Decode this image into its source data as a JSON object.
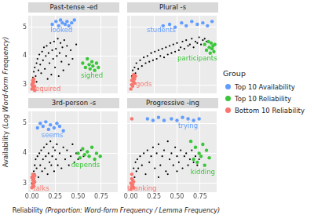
{
  "chart_data": {
    "type": "scatter",
    "x_label": "Reliability (Proportion: Word-form Frequency / Lemma Frequency)",
    "y_label": "Availability (Log Word-form Frequency)",
    "legend": "right",
    "legend_title": "Group",
    "grid": true,
    "xlim": [
      -0.04,
      0.93
    ],
    "ylim": [
      2.7,
      5.4
    ],
    "xticks": [
      {
        "value": 0,
        "label": "0.00"
      },
      {
        "value": 0.25,
        "label": "0.25"
      },
      {
        "value": 0.5,
        "label": "0.50"
      },
      {
        "value": 0.75,
        "label": "0.75"
      }
    ],
    "yticks": [
      3,
      4,
      5
    ],
    "panels": [
      {
        "title": "Past-tense -ed",
        "series": [
          {
            "color": "#000000",
            "x": [
              0.0,
              0.01,
              0.01,
              0.02,
              0.02,
              0.03,
              0.04,
              0.05,
              0.05,
              0.06,
              0.07,
              0.08,
              0.09,
              0.1,
              0.11,
              0.12,
              0.13,
              0.14,
              0.15,
              0.16,
              0.17,
              0.18,
              0.19,
              0.2,
              0.21,
              0.22,
              0.23,
              0.24,
              0.25,
              0.26,
              0.27,
              0.28,
              0.29,
              0.3,
              0.31,
              0.32,
              0.33,
              0.34,
              0.35,
              0.37,
              0.38,
              0.4,
              0.42,
              0.44,
              0.48
            ],
            "y": [
              3.05,
              2.95,
              3.25,
              3.15,
              3.45,
              3.6,
              3.3,
              3.75,
              3.1,
              3.9,
              3.5,
              4.05,
              3.7,
              3.4,
              4.15,
              3.85,
              4.3,
              3.55,
              4.0,
              4.35,
              3.2,
              4.1,
              3.75,
              4.45,
              3.35,
              4.2,
              3.9,
              4.5,
              3.6,
              4.25,
              4.0,
              4.6,
              3.3,
              4.1,
              4.45,
              3.8,
              4.3,
              3.5,
              4.55,
              4.0,
              4.35,
              3.7,
              4.2,
              3.9,
              4.4
            ]
          },
          {
            "name": "Top 10 Availability",
            "color": "#619cff",
            "x": [
              0.22,
              0.26,
              0.29,
              0.31,
              0.33,
              0.36,
              0.38,
              0.4,
              0.43,
              0.46
            ],
            "y": [
              5.1,
              5.2,
              5.05,
              5.25,
              5.15,
              5.1,
              5.2,
              5.05,
              5.15,
              5.25
            ]
          },
          {
            "name": "Top 10 Reliability",
            "color": "#39c639",
            "x": [
              0.55,
              0.58,
              0.6,
              0.62,
              0.63,
              0.65,
              0.66,
              0.68,
              0.7,
              0.72
            ],
            "y": [
              3.75,
              3.6,
              3.9,
              3.7,
              3.55,
              3.8,
              3.65,
              3.5,
              3.75,
              3.6
            ]
          },
          {
            "name": "Bottom 10 Reliability",
            "color": "#f8766d",
            "x": [
              0.0,
              0.01,
              0.01,
              0.02,
              0.02,
              0.03,
              0.0,
              0.01,
              0.02,
              0.03
            ],
            "y": [
              2.85,
              2.95,
              3.05,
              2.9,
              3.1,
              2.95,
              3.0,
              3.15,
              3.2,
              2.8
            ]
          }
        ],
        "annotations": [
          {
            "text": "looked",
            "x": 0.32,
            "y": 4.9,
            "color": "#619cff"
          },
          {
            "text": "sighed",
            "x": 0.65,
            "y": 3.3,
            "color": "#39c639"
          },
          {
            "text": "required",
            "x": 0.16,
            "y": 2.85,
            "color": "#f8766d"
          }
        ]
      },
      {
        "title": "Plural -s",
        "series": [
          {
            "color": "#000000",
            "x": [
              0.0,
              0.01,
              0.02,
              0.03,
              0.04,
              0.05,
              0.06,
              0.08,
              0.1,
              0.12,
              0.14,
              0.16,
              0.18,
              0.2,
              0.22,
              0.24,
              0.26,
              0.28,
              0.3,
              0.32,
              0.34,
              0.36,
              0.38,
              0.4,
              0.42,
              0.44,
              0.46,
              0.48,
              0.5,
              0.52,
              0.54,
              0.56,
              0.58,
              0.6,
              0.62,
              0.64,
              0.66,
              0.68,
              0.7,
              0.72,
              0.74,
              0.76,
              0.78,
              0.8,
              0.82
            ],
            "y": [
              3.0,
              3.3,
              3.5,
              3.2,
              3.6,
              3.4,
              3.75,
              3.55,
              3.85,
              3.65,
              3.95,
              3.75,
              4.0,
              3.8,
              4.1,
              3.85,
              4.15,
              3.9,
              4.2,
              4.0,
              4.25,
              3.95,
              4.3,
              4.05,
              4.35,
              4.1,
              4.4,
              4.15,
              4.45,
              4.2,
              4.3,
              4.5,
              4.25,
              4.55,
              4.35,
              4.4,
              4.6,
              4.3,
              4.5,
              4.45,
              4.65,
              4.4,
              4.55,
              4.6,
              4.5
            ]
          },
          {
            "name": "Top 10 Availability",
            "color": "#619cff",
            "x": [
              0.35,
              0.42,
              0.48,
              0.55,
              0.6,
              0.66,
              0.72,
              0.78,
              0.83,
              0.88
            ],
            "y": [
              5.05,
              5.1,
              5.0,
              5.15,
              5.05,
              5.2,
              5.1,
              5.15,
              5.05,
              5.2
            ]
          },
          {
            "name": "Top 10 Reliability",
            "color": "#39c639",
            "x": [
              0.8,
              0.82,
              0.84,
              0.85,
              0.86,
              0.87,
              0.88,
              0.89,
              0.9,
              0.91
            ],
            "y": [
              4.4,
              4.2,
              4.5,
              4.3,
              4.1,
              4.45,
              4.25,
              4.35,
              4.15,
              4.4
            ]
          },
          {
            "name": "Bottom 10 Reliability",
            "color": "#f8766d",
            "x": [
              0.0,
              0.01,
              0.01,
              0.02,
              0.02,
              0.03,
              0.03,
              0.04,
              0.04,
              0.05
            ],
            "y": [
              2.85,
              3.0,
              3.15,
              2.95,
              3.25,
              3.1,
              3.35,
              3.05,
              3.2,
              3.3
            ]
          }
        ],
        "annotations": [
          {
            "text": "students",
            "x": 0.33,
            "y": 4.88,
            "color": "#619cff"
          },
          {
            "text": "participants",
            "x": 0.72,
            "y": 3.9,
            "color": "#39c639"
          },
          {
            "text": "gods",
            "x": 0.14,
            "y": 3.0,
            "color": "#f8766d"
          }
        ]
      },
      {
        "title": "3rd-person -s",
        "series": [
          {
            "color": "#000000",
            "x": [
              0.0,
              0.01,
              0.01,
              0.02,
              0.02,
              0.03,
              0.03,
              0.04,
              0.05,
              0.06,
              0.07,
              0.08,
              0.09,
              0.1,
              0.11,
              0.12,
              0.13,
              0.14,
              0.15,
              0.16,
              0.17,
              0.18,
              0.19,
              0.2,
              0.21,
              0.22,
              0.23,
              0.24,
              0.25,
              0.26,
              0.27,
              0.28,
              0.3,
              0.32,
              0.34,
              0.36,
              0.38,
              0.4,
              0.42,
              0.44,
              0.46,
              0.48,
              0.5,
              0.53,
              0.56
            ],
            "y": [
              3.0,
              3.2,
              2.9,
              3.4,
              3.1,
              3.6,
              3.3,
              3.8,
              3.5,
              3.9,
              3.2,
              4.0,
              3.6,
              4.1,
              3.4,
              3.8,
              4.2,
              3.5,
              3.9,
              4.3,
              3.3,
              4.0,
              3.7,
              4.4,
              3.6,
              3.9,
              4.2,
              3.4,
              4.1,
              3.8,
              4.3,
              3.6,
              4.0,
              3.5,
              4.2,
              3.8,
              4.1,
              3.6,
              3.9,
              4.3,
              3.7,
              4.0,
              3.8,
              4.1,
              3.9
            ]
          },
          {
            "name": "Top 10 Availability",
            "color": "#619cff",
            "x": [
              0.06,
              0.09,
              0.12,
              0.15,
              0.18,
              0.2,
              0.24,
              0.27,
              0.3,
              0.34
            ],
            "y": [
              4.85,
              5.0,
              4.9,
              5.05,
              4.8,
              4.95,
              4.85,
              5.0,
              4.9,
              4.75
            ]
          },
          {
            "name": "Top 10 Reliability",
            "color": "#39c639",
            "x": [
              0.5,
              0.52,
              0.55,
              0.57,
              0.6,
              0.62,
              0.65,
              0.68,
              0.7,
              0.74
            ],
            "y": [
              4.0,
              3.85,
              4.15,
              3.95,
              4.05,
              3.9,
              4.2,
              3.8,
              4.0,
              3.9
            ]
          },
          {
            "name": "Bottom 10 Reliability",
            "color": "#f8766d",
            "x": [
              0.0,
              0.0,
              0.01,
              0.01,
              0.01,
              0.02,
              0.02,
              0.02,
              0.03,
              0.03
            ],
            "y": [
              2.85,
              3.2,
              2.95,
              3.1,
              3.3,
              3.0,
              3.15,
              2.9,
              3.05,
              3.25
            ]
          }
        ],
        "annotations": [
          {
            "text": "seems",
            "x": 0.22,
            "y": 4.6,
            "color": "#619cff"
          },
          {
            "text": "depends",
            "x": 0.58,
            "y": 3.6,
            "color": "#39c639"
          },
          {
            "text": "talks",
            "x": 0.1,
            "y": 2.82,
            "color": "#f8766d"
          }
        ]
      },
      {
        "title": "Progressive -ing",
        "series": [
          {
            "color": "#000000",
            "x": [
              0.0,
              0.01,
              0.02,
              0.03,
              0.04,
              0.05,
              0.06,
              0.07,
              0.08,
              0.1,
              0.12,
              0.14,
              0.16,
              0.18,
              0.2,
              0.22,
              0.24,
              0.26,
              0.28,
              0.3,
              0.32,
              0.34,
              0.36,
              0.38,
              0.4,
              0.42,
              0.44,
              0.46,
              0.48,
              0.5,
              0.52,
              0.54,
              0.56,
              0.58,
              0.6,
              0.62,
              0.64,
              0.66,
              0.68,
              0.7,
              0.72,
              0.74,
              0.3,
              0.4,
              0.5
            ],
            "y": [
              3.0,
              3.3,
              3.1,
              3.5,
              3.2,
              3.7,
              3.4,
              3.8,
              3.5,
              3.9,
              3.6,
              4.0,
              3.3,
              4.1,
              3.7,
              3.9,
              4.2,
              3.5,
              4.0,
              4.3,
              3.6,
              3.9,
              4.1,
              3.4,
              4.4,
              3.8,
              4.0,
              3.6,
              4.2,
              3.9,
              3.7,
              4.1,
              3.5,
              3.9,
              4.0,
              3.6,
              3.8,
              4.1,
              3.7,
              3.9,
              3.6,
              3.8,
              3.2,
              3.3,
              3.4
            ]
          },
          {
            "name": "Top 10 Availability",
            "color": "#619cff",
            "x": [
              0.18,
              0.24,
              0.3,
              0.36,
              0.44,
              0.5,
              0.56,
              0.62,
              0.68,
              0.74
            ],
            "y": [
              5.15,
              5.1,
              5.2,
              5.1,
              5.15,
              5.1,
              5.2,
              5.15,
              5.1,
              5.15
            ]
          },
          {
            "name": "Top 10 Reliability",
            "color": "#39c639",
            "x": [
              0.65,
              0.68,
              0.7,
              0.72,
              0.74,
              0.76,
              0.78,
              0.8,
              0.82,
              0.85
            ],
            "y": [
              4.4,
              3.8,
              4.2,
              3.7,
              4.0,
              3.9,
              4.3,
              3.6,
              4.1,
              3.85
            ]
          },
          {
            "name": "Bottom 10 Reliability",
            "color": "#f8766d",
            "x": [
              0.0,
              0.0,
              0.01,
              0.01,
              0.01,
              0.02,
              0.02,
              0.03,
              0.03,
              0.01
            ],
            "y": [
              2.8,
              3.0,
              2.9,
              3.15,
              3.3,
              2.95,
              3.1,
              2.85,
              3.05,
              5.15
            ]
          }
        ],
        "annotations": [
          {
            "text": "trying",
            "x": 0.62,
            "y": 4.9,
            "color": "#619cff"
          },
          {
            "text": "kidding",
            "x": 0.78,
            "y": 3.35,
            "color": "#39c639"
          },
          {
            "text": "thanking",
            "x": 0.12,
            "y": 2.8,
            "color": "#f8766d"
          }
        ]
      }
    ]
  }
}
